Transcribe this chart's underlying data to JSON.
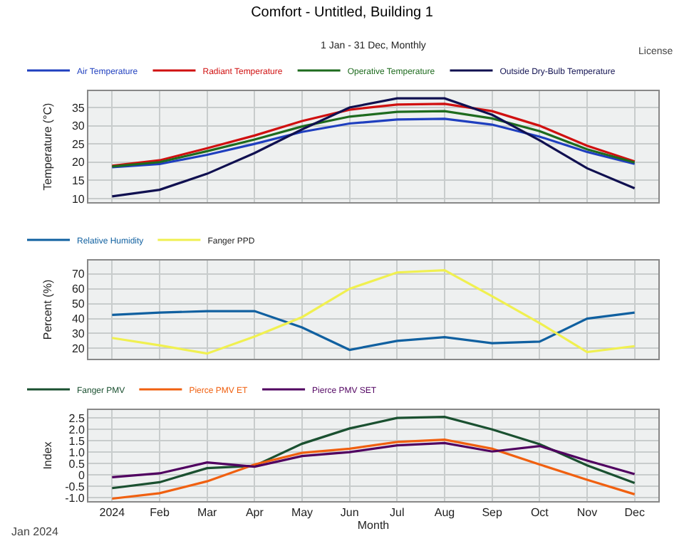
{
  "chart_data": [
    {
      "type": "line",
      "title": "Comfort - Untitled, Building 1",
      "subtitle": "1 Jan - 31 Dec, Monthly",
      "ylabel": "Temperature (°C)",
      "annotations": [
        "License"
      ],
      "categories": [
        null,
        null,
        null,
        null,
        null,
        null,
        null,
        null,
        null,
        null,
        null,
        null
      ],
      "series": [
        {
          "name": "Air Temperature",
          "color": "#1f3fbf",
          "values": [
            18.6,
            19.5,
            22,
            25,
            28.3,
            30.6,
            31.7,
            31.9,
            30.3,
            27,
            22.8,
            19.5
          ]
        },
        {
          "name": "Radiant Temperature",
          "color": "#d01010",
          "values": [
            19,
            20.5,
            23.8,
            27.3,
            31.3,
            34.4,
            35.8,
            36,
            34,
            30,
            24.5,
            20.2
          ]
        },
        {
          "name": "Operative Temperature",
          "color": "#1e6b1e",
          "values": [
            18.8,
            20,
            23,
            26.2,
            29.8,
            32.5,
            33.8,
            34,
            32,
            28.5,
            23.5,
            19.9
          ]
        },
        {
          "name": "Outside Dry-Bulb Temperature",
          "color": "#101050",
          "values": [
            10.6,
            12.4,
            16.8,
            22.5,
            29,
            35,
            37.5,
            37.5,
            33,
            26,
            18.3,
            12.8
          ]
        }
      ],
      "ylim": [
        9,
        39.5
      ],
      "yticks": [
        10,
        15,
        20,
        25,
        30,
        35
      ],
      "grid": true,
      "legend": "top left",
      "tick_labels": "y"
    },
    {
      "type": "line",
      "ylabel": "Percent (%)",
      "categories": [
        null,
        null,
        null,
        null,
        null,
        null,
        null,
        null,
        null,
        null,
        null,
        null
      ],
      "series": [
        {
          "name": "Relative Humidity",
          "color": "#1060a0",
          "values": [
            42.5,
            44,
            45,
            45,
            34,
            19,
            25,
            27.5,
            23.5,
            24.5,
            40,
            44
          ]
        },
        {
          "name": "Fanger PPD",
          "color": "#f0f050",
          "values": [
            27,
            22,
            16.5,
            28,
            41,
            60,
            71,
            72.5,
            55,
            37,
            17.5,
            21.5
          ]
        }
      ],
      "ylim": [
        13,
        79
      ],
      "yticks": [
        20,
        30,
        40,
        50,
        60,
        70
      ],
      "grid": true,
      "legend": "top left",
      "tick_labels": "y"
    },
    {
      "type": "line",
      "xlabel": "Month",
      "ylabel": "Index",
      "annotations": [
        "Jan 2024"
      ],
      "categories": [
        "2024",
        "Feb",
        "Mar",
        "Apr",
        "May",
        "Jun",
        "Jul",
        "Aug",
        "Sep",
        "Oct",
        "Nov",
        "Dec"
      ],
      "series": [
        {
          "name": "Fanger PMV",
          "color": "#1a5030",
          "values": [
            -0.58,
            -0.32,
            0.3,
            0.4,
            1.37,
            2.04,
            2.5,
            2.55,
            2.0,
            1.35,
            0.42,
            -0.35
          ]
        },
        {
          "name": "Pierce PMV ET",
          "color": "#f06010",
          "values": [
            -1.04,
            -0.8,
            -0.28,
            0.46,
            0.97,
            1.15,
            1.45,
            1.55,
            1.15,
            0.46,
            -0.21,
            -0.85
          ]
        },
        {
          "name": "Pierce PMV SET",
          "color": "#500060",
          "values": [
            -0.1,
            0.07,
            0.55,
            0.36,
            0.83,
            1.0,
            1.3,
            1.4,
            1.03,
            1.27,
            0.63,
            0.04
          ]
        }
      ],
      "ylim": [
        -1.15,
        2.85
      ],
      "yticks": [
        {
          "value": -1,
          "label": "-1.0"
        },
        -0.5,
        0,
        0.5,
        {
          "value": 1,
          "label": "1.0"
        },
        1.5,
        {
          "value": 2,
          "label": "2.0"
        },
        2.5
      ],
      "grid": true,
      "legend": "top left"
    }
  ]
}
